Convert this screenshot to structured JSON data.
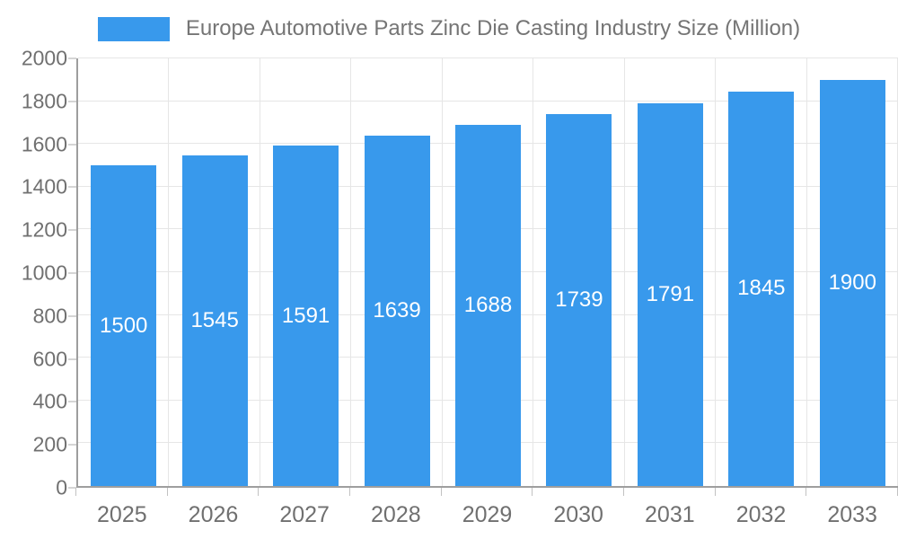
{
  "legend": {
    "label": "Europe Automotive Parts Zinc Die Casting Industry Size (Million)"
  },
  "chart_data": {
    "type": "bar",
    "title": "Europe Automotive Parts Zinc Die Casting Industry Size (Million)",
    "categories": [
      "2025",
      "2026",
      "2027",
      "2028",
      "2029",
      "2030",
      "2031",
      "2032",
      "2033"
    ],
    "values": [
      1500,
      1545,
      1591,
      1639,
      1688,
      1739,
      1791,
      1845,
      1900
    ],
    "xlabel": "",
    "ylabel": "",
    "ylim": [
      0,
      2000
    ],
    "yticks": [
      0,
      200,
      400,
      600,
      800,
      1000,
      1200,
      1400,
      1600,
      1800,
      2000
    ],
    "grid": true,
    "legend_position": "top",
    "bar_color": "#3899ec",
    "bar_label_color": "#ffffff",
    "axis_line_color": "#9e9e9e",
    "gridline_color": "#e6e6e6",
    "tick_text_color": "#707070"
  }
}
